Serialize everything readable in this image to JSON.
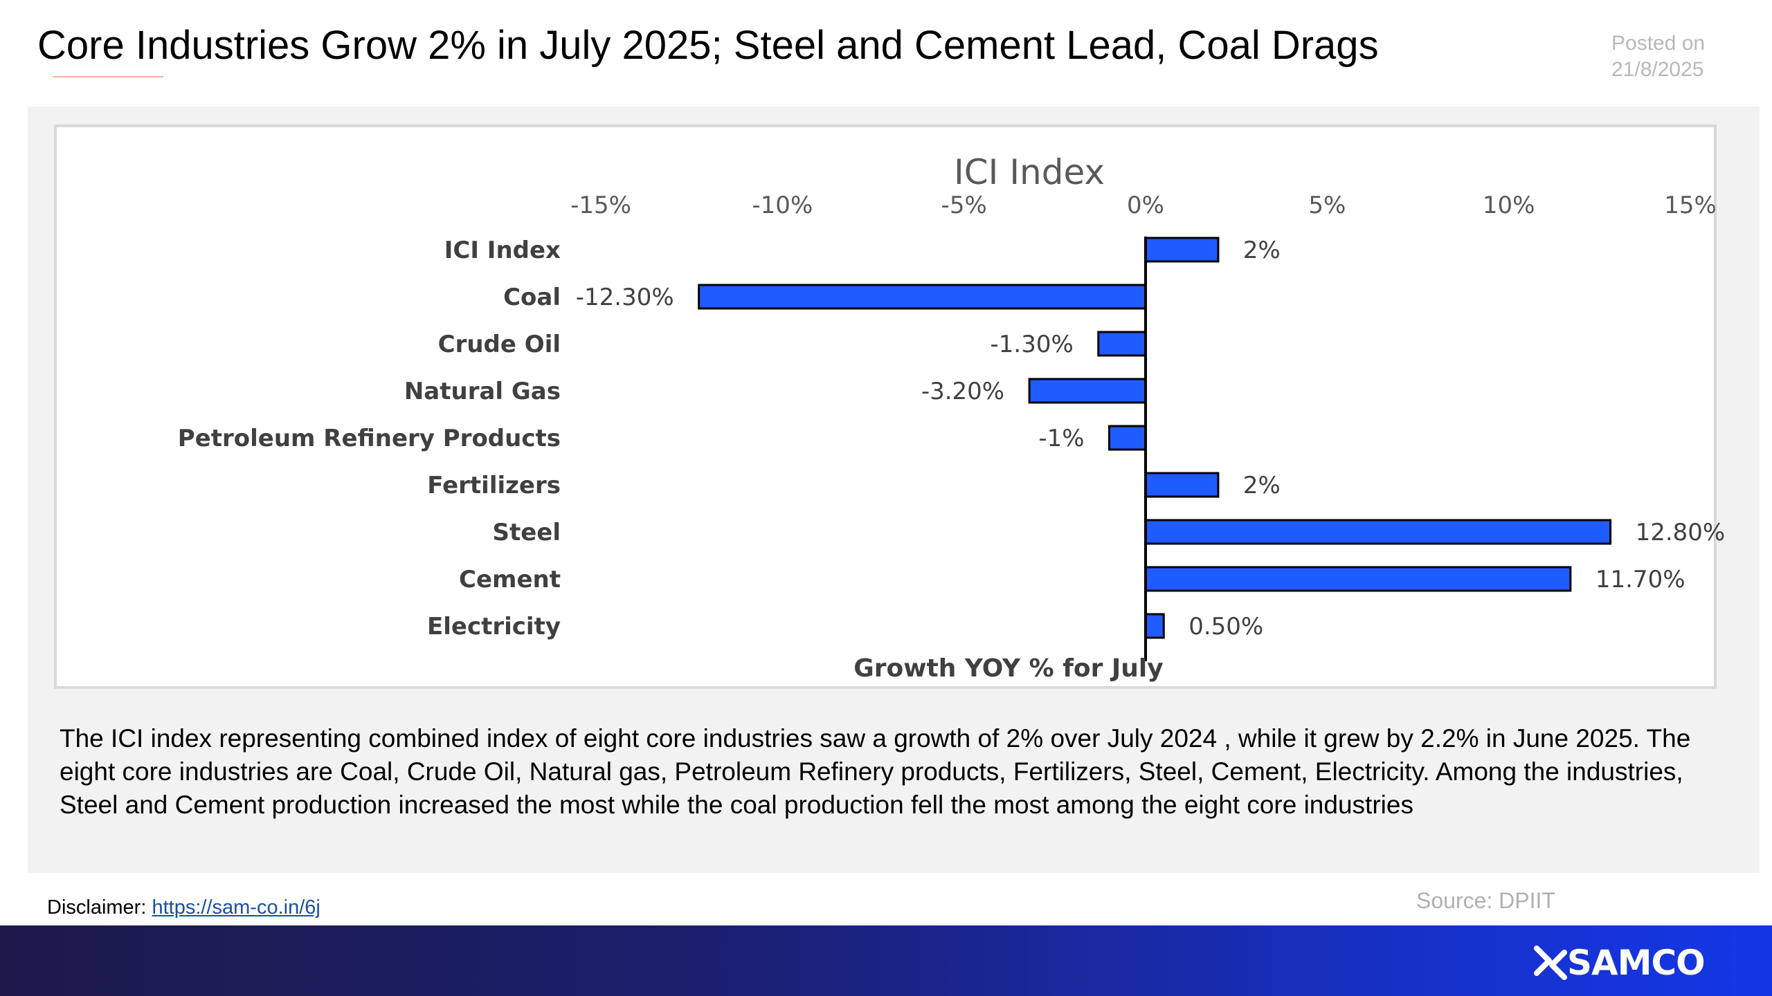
{
  "headline": "Core Industries Grow 2% in July 2025; Steel and Cement Lead, Coal Drags",
  "posted": {
    "label": "Posted on",
    "date": "21/8/2025"
  },
  "chart_data": {
    "type": "bar",
    "orientation": "horizontal",
    "title": "ICI Index",
    "xlabel": "Growth YOY % for July",
    "ylabel": "",
    "xlim": [
      -15,
      15
    ],
    "ticks": [
      "-15%",
      "-10%",
      "-5%",
      "0%",
      "5%",
      "10%",
      "15%"
    ],
    "tick_values": [
      -15,
      -10,
      -5,
      0,
      5,
      10,
      15
    ],
    "categories": [
      "ICI Index",
      "Coal",
      "Crude Oil",
      "Natural Gas",
      "Petroleum Refinery Products",
      "Fertilizers",
      "Steel",
      "Cement",
      "Electricity"
    ],
    "values": [
      2,
      -12.3,
      -1.3,
      -3.2,
      -1,
      2,
      12.8,
      11.7,
      0.5
    ],
    "data_labels": [
      "2%",
      "-12.30%",
      "-1.30%",
      "-3.20%",
      "-1%",
      "2%",
      "12.80%",
      "11.70%",
      "0.50%"
    ],
    "bar_color": "#1f5cff",
    "grid": false,
    "legend": "none"
  },
  "description": "The ICI index representing combined index of eight core industries saw a growth of 2% over July 2024 , while it grew by 2.2% in June 2025. The eight core industries are Coal, Crude Oil, Natural gas, Petroleum Refinery products, Fertilizers, Steel, Cement, Electricity. Among the industries, Steel and Cement production increased the most while the coal production fell the most among the eight core industries",
  "source": "Source: DPIIT",
  "disclaimer": {
    "label": "Disclaimer:",
    "link_text": "https://sam-co.in/6j"
  },
  "logo": {
    "text": "SAMCO"
  },
  "colors": {
    "footer_start": "#1c1a4a",
    "footer_end": "#1437e6",
    "panel": "#f2f2f2",
    "link": "#1a4fa0"
  }
}
